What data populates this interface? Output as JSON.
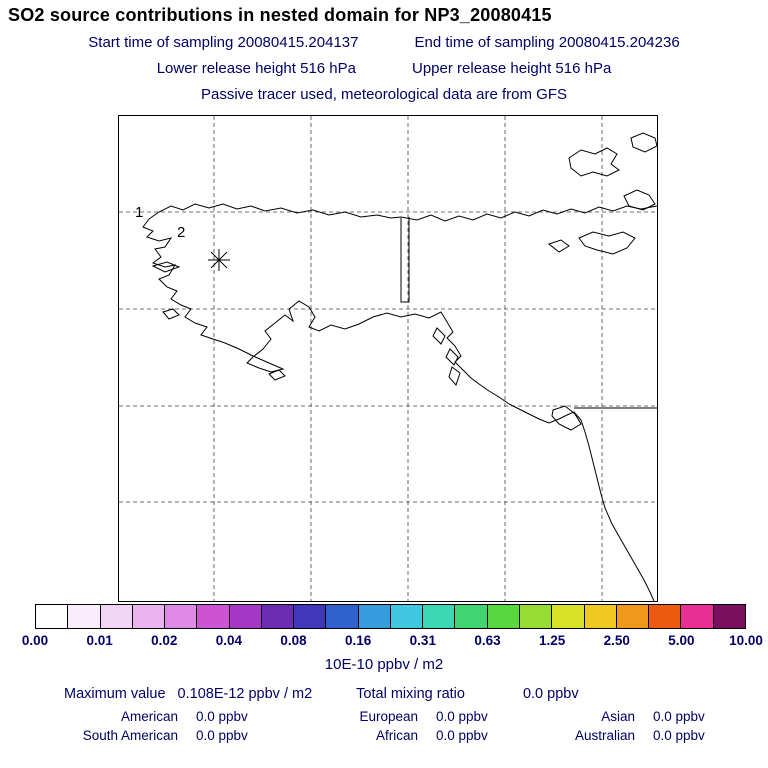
{
  "title": "SO2 source contributions in nested domain for NP3_20080415",
  "header": {
    "start_time": "Start time of sampling 20080415.204137",
    "end_time": "End time of sampling 20080415.204236",
    "lower_release": "Lower release height  516 hPa",
    "upper_release": "Upper release height  516 hPa",
    "tracer_note": "Passive tracer used, meteorological data are from GFS"
  },
  "map": {
    "release_point_labels": [
      "1",
      "2"
    ],
    "marker": "release-location-asterisk"
  },
  "colorbar": {
    "tick_labels": [
      "0.00",
      "0.01",
      "0.02",
      "0.04",
      "0.08",
      "0.16",
      "0.31",
      "0.63",
      "1.25",
      "2.50",
      "5.00",
      "10.00"
    ],
    "units": "10E-10 ppbv / m2",
    "colors": [
      "#ffffff",
      "#f9ecfb",
      "#f2d4f6",
      "#eab4ef",
      "#de8ae6",
      "#cc54d4",
      "#a636c4",
      "#6c2cb4",
      "#4038b8",
      "#2f62cc",
      "#359ddd",
      "#3fc8e0",
      "#3cd8b4",
      "#42d470",
      "#58d83e",
      "#96dc32",
      "#d8e028",
      "#f0c822",
      "#f0981c",
      "#ec5a12",
      "#e83094",
      "#7a0f5e"
    ]
  },
  "stats": {
    "maximum_label": "Maximum value",
    "maximum_value": "0.108E-12 ppbv / m2",
    "total_label": "Total mixing ratio",
    "total_value": "0.0 ppbv",
    "regions": [
      {
        "label": "American",
        "value": "0.0 ppbv"
      },
      {
        "label": "European",
        "value": "0.0 ppbv"
      },
      {
        "label": "Asian",
        "value": "0.0 ppbv"
      },
      {
        "label": "South American",
        "value": "0.0 ppbv"
      },
      {
        "label": "African",
        "value": "0.0 ppbv"
      },
      {
        "label": "Australian",
        "value": "0.0 ppbv"
      }
    ]
  },
  "chart_data": {
    "type": "heatmap",
    "title": "SO2 source contributions in nested domain for NP3_20080415",
    "subtitle_lines": [
      "Start time of sampling 20080415.204137    End time of sampling 20080415.204236",
      "Lower release height  516 hPa    Upper release height  516 hPa",
      "Passive tracer used, meteorological data are from GFS"
    ],
    "colorbar_ticks": [
      0.0,
      0.01,
      0.02,
      0.04,
      0.08,
      0.16,
      0.31,
      0.63,
      1.25,
      2.5,
      5.0,
      10.0
    ],
    "colorbar_units": "10E-10 ppbv / m2",
    "maximum_value": "0.108E-12 ppbv / m2",
    "total_mixing_ratio": "0.0 ppbv",
    "region_contributions_ppbv": {
      "American": 0.0,
      "European": 0.0,
      "Asian": 0.0,
      "South American": 0.0,
      "African": 0.0,
      "Australian": 0.0
    },
    "release_points": [
      {
        "label": "1"
      },
      {
        "label": "2"
      }
    ],
    "legend_position": "bottom",
    "grid": true
  }
}
